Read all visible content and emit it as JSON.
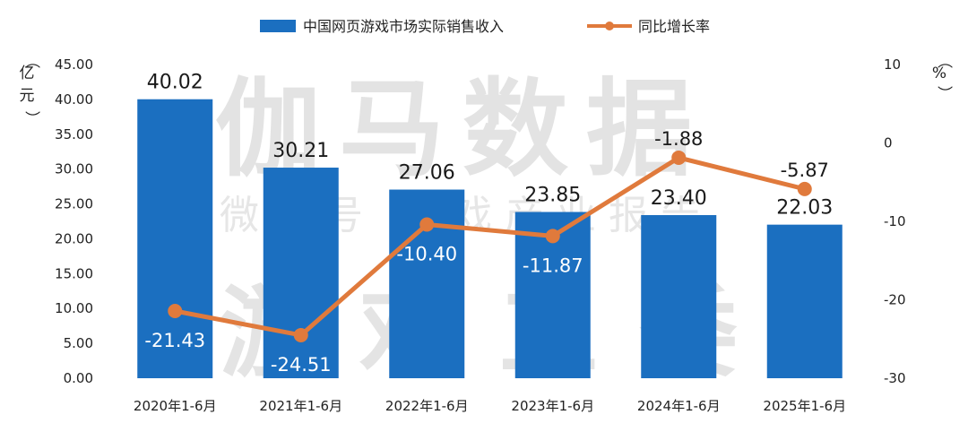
{
  "chart_data": {
    "type": "bar+line",
    "categories": [
      "2020年1-6月",
      "2021年1-6月",
      "2022年1-6月",
      "2023年1-6月",
      "2024年1-6月",
      "2025年1-6月"
    ],
    "series": [
      {
        "name": "中国网页游戏市场实际销售收入",
        "type": "bar",
        "axis": "left",
        "values": [
          40.02,
          30.21,
          27.06,
          23.85,
          23.4,
          22.03
        ],
        "labels": [
          "40.02",
          "30.21",
          "27.06",
          "23.85",
          "23.40",
          "22.03"
        ]
      },
      {
        "name": "同比增长率",
        "type": "line",
        "axis": "right",
        "values": [
          -21.43,
          -24.51,
          -10.4,
          -11.87,
          -1.88,
          -5.87
        ],
        "labels": [
          "-21.43",
          "-24.51",
          "-10.40",
          "-11.87",
          "-1.88",
          "-5.87"
        ]
      }
    ],
    "y_left": {
      "label": "（亿元）",
      "range": [
        0,
        45
      ],
      "ticks": [
        "0.00",
        "5.00",
        "10.00",
        "15.00",
        "20.00",
        "25.00",
        "30.00",
        "35.00",
        "40.00",
        "45.00"
      ]
    },
    "y_right": {
      "label": "（%）",
      "range": [
        -30,
        10
      ],
      "ticks": [
        "-30",
        "-20",
        "-10",
        "0",
        "10"
      ]
    },
    "legend_position": "top",
    "grid": false,
    "colors": {
      "bar": "#1b6fc0",
      "line": "#e07a3c"
    }
  },
  "watermark": {
    "line1": "伽马数据",
    "line2": "微信号 游戏产业报告",
    "line3": "游戏工委"
  }
}
